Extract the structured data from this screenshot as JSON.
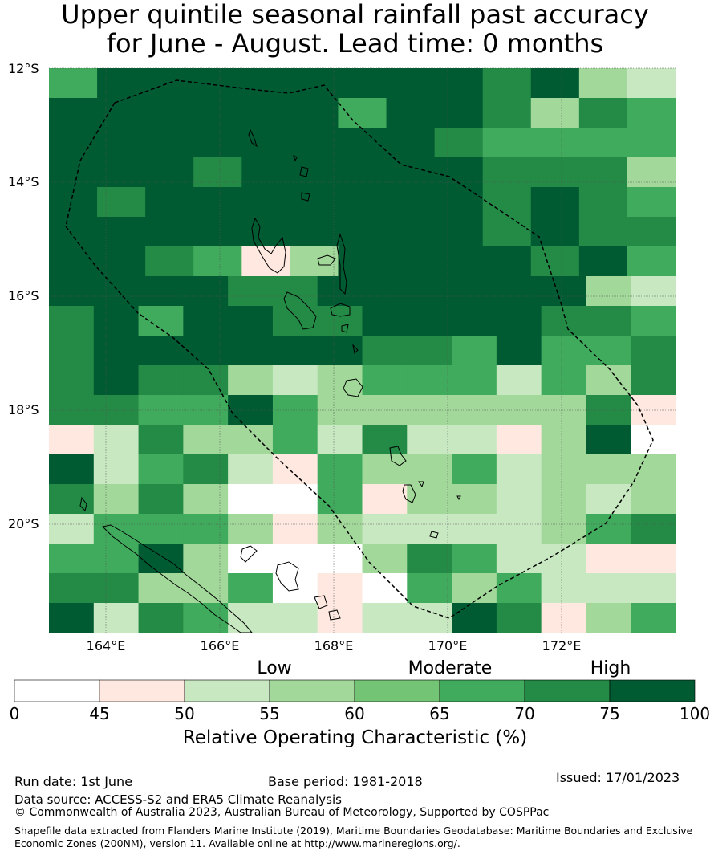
{
  "title": {
    "line1": "Upper quintile seasonal rainfall past accuracy",
    "line2": "for June - August. Lead time: 0 months"
  },
  "map": {
    "lat_labels": [
      "12°S",
      "14°S",
      "16°S",
      "18°S",
      "20°S"
    ],
    "lon_labels": [
      "164°E",
      "166°E",
      "168°E",
      "170°E",
      "172°E"
    ],
    "lon_range": [
      162.98,
      174.0
    ],
    "lat_range": [
      -21.9,
      -12.0
    ],
    "grid_values": [
      [
        65,
        75,
        75,
        80,
        80,
        75,
        75,
        80,
        80,
        70,
        80,
        55,
        52
      ],
      [
        75,
        75,
        80,
        80,
        80,
        80,
        65,
        75,
        80,
        70,
        57,
        70,
        65
      ],
      [
        80,
        80,
        80,
        80,
        80,
        75,
        80,
        80,
        70,
        65,
        65,
        65,
        65
      ],
      [
        80,
        80,
        80,
        70,
        80,
        80,
        75,
        80,
        80,
        70,
        70,
        70,
        57
      ],
      [
        80,
        70,
        80,
        75,
        80,
        80,
        80,
        80,
        75,
        70,
        75,
        70,
        65
      ],
      [
        80,
        75,
        75,
        75,
        75,
        80,
        80,
        80,
        75,
        70,
        75,
        70,
        70
      ],
      [
        80,
        75,
        70,
        65,
        47,
        57,
        80,
        80,
        80,
        75,
        70,
        80,
        65
      ],
      [
        75,
        80,
        75,
        75,
        70,
        70,
        80,
        80,
        75,
        75,
        80,
        75,
        57,
        52
      ],
      [
        70,
        80,
        65,
        80,
        75,
        70,
        70,
        75,
        80,
        75,
        80,
        70,
        70,
        65
      ],
      [
        70,
        75,
        75,
        75,
        75,
        75,
        75,
        70,
        70,
        65,
        80,
        65,
        65,
        70
      ],
      [
        70,
        75,
        70,
        70,
        57,
        52,
        57,
        65,
        65,
        65,
        52,
        65,
        57,
        70
      ],
      [
        70,
        70,
        65,
        65,
        80,
        65,
        57,
        57,
        57,
        57,
        57,
        57,
        70,
        47
      ],
      [
        47,
        52,
        70,
        57,
        57,
        65,
        52,
        70,
        52,
        52,
        47,
        57,
        75,
        40
      ],
      [
        75,
        52,
        65,
        70,
        52,
        47,
        65,
        57,
        57,
        65,
        52,
        57,
        57,
        57
      ],
      [
        70,
        57,
        70,
        57,
        40,
        40,
        65,
        47,
        57,
        57,
        52,
        57,
        52,
        57
      ],
      [
        52,
        65,
        65,
        65,
        57,
        47,
        57,
        52,
        52,
        52,
        52,
        57,
        65,
        70
      ],
      [
        65,
        65,
        75,
        57,
        40,
        40,
        40,
        57,
        70,
        65,
        52,
        52,
        47,
        47
      ],
      [
        70,
        70,
        57,
        57,
        65,
        40,
        47,
        40,
        65,
        57,
        65,
        52,
        52,
        52
      ],
      [
        80,
        52,
        70,
        65,
        52,
        52,
        47,
        52,
        52,
        75,
        70,
        47,
        57,
        65
      ]
    ]
  },
  "legend": {
    "categories": [
      "Low",
      "Moderate",
      "High"
    ],
    "ticks": [
      "0",
      "45",
      "50",
      "55",
      "60",
      "65",
      "70",
      "75",
      "100"
    ],
    "title": "Relative Operating Characteristic (%)",
    "colors": [
      "#ffffff",
      "#fee8df",
      "#c8e8c2",
      "#a2d99a",
      "#74c476",
      "#41ab5d",
      "#238b45",
      "#005a32"
    ]
  },
  "footer": {
    "run_date": "Run date: 1st June",
    "base_period": "Base period: 1981-2018",
    "issued": "Issued: 17/01/2023",
    "data_source": "Data source: ACCESS-S2 and ERA5 Climate Reanalysis",
    "copyright": "© Commonwealth of Australia 2023, Australian Bureau of Meteorology, Supported by COSPPac",
    "shapefile": "Shapefile data extracted from Flanders Marine Institute (2019), Maritime Boundaries Geodatabase: Maritime Boundaries and Exclusive Economic Zones (200NM), version 11. Available online at http://www.marineregions.org/."
  }
}
